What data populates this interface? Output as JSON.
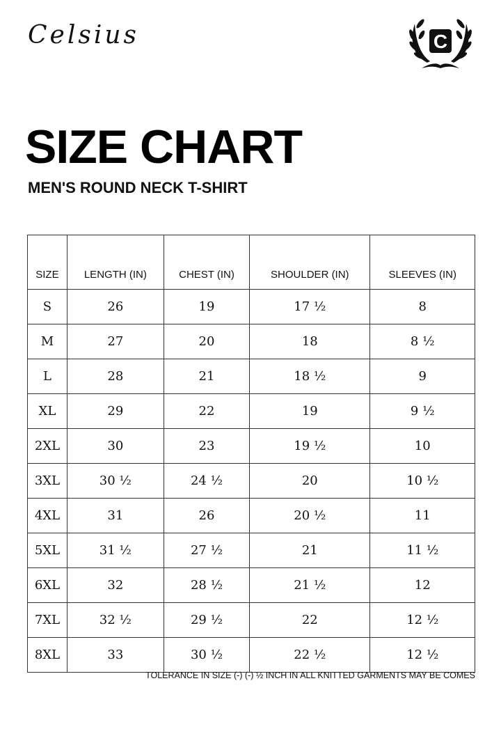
{
  "brand": {
    "name": "Celsius",
    "logo_letter": "C"
  },
  "title": "SIZE CHART",
  "subtitle": "MEN'S ROUND NECK T-SHIRT",
  "table": {
    "headers": [
      "SIZE",
      "LENGTH (IN)",
      "CHEST (IN)",
      "SHOULDER (IN)",
      "SLEEVES (IN)"
    ],
    "rows": [
      [
        "S",
        "26",
        "19",
        "17 ½",
        "8"
      ],
      [
        "M",
        "27",
        "20",
        "18",
        "8 ½"
      ],
      [
        "L",
        "28",
        "21",
        "18 ½",
        "9"
      ],
      [
        "XL",
        "29",
        "22",
        "19",
        "9 ½"
      ],
      [
        "2XL",
        "30",
        "23",
        "19 ½",
        "10"
      ],
      [
        "3XL",
        "30 ½",
        "24 ½",
        "20",
        "10 ½"
      ],
      [
        "4XL",
        "31",
        "26",
        "20 ½",
        "11"
      ],
      [
        "5XL",
        "31 ½",
        "27 ½",
        "21",
        "11 ½"
      ],
      [
        "6XL",
        "32",
        "28 ½",
        "21 ½",
        "12"
      ],
      [
        "7XL",
        "32 ½",
        "29 ½",
        "22",
        "12 ½"
      ],
      [
        "8XL",
        "33",
        "30 ½",
        "22 ½",
        "12 ½"
      ]
    ]
  },
  "note": "TOLERANCE IN SIZE (-) (-) ½ INCH IN ALL KNITTED GARMENTS MAY BE COMES"
}
